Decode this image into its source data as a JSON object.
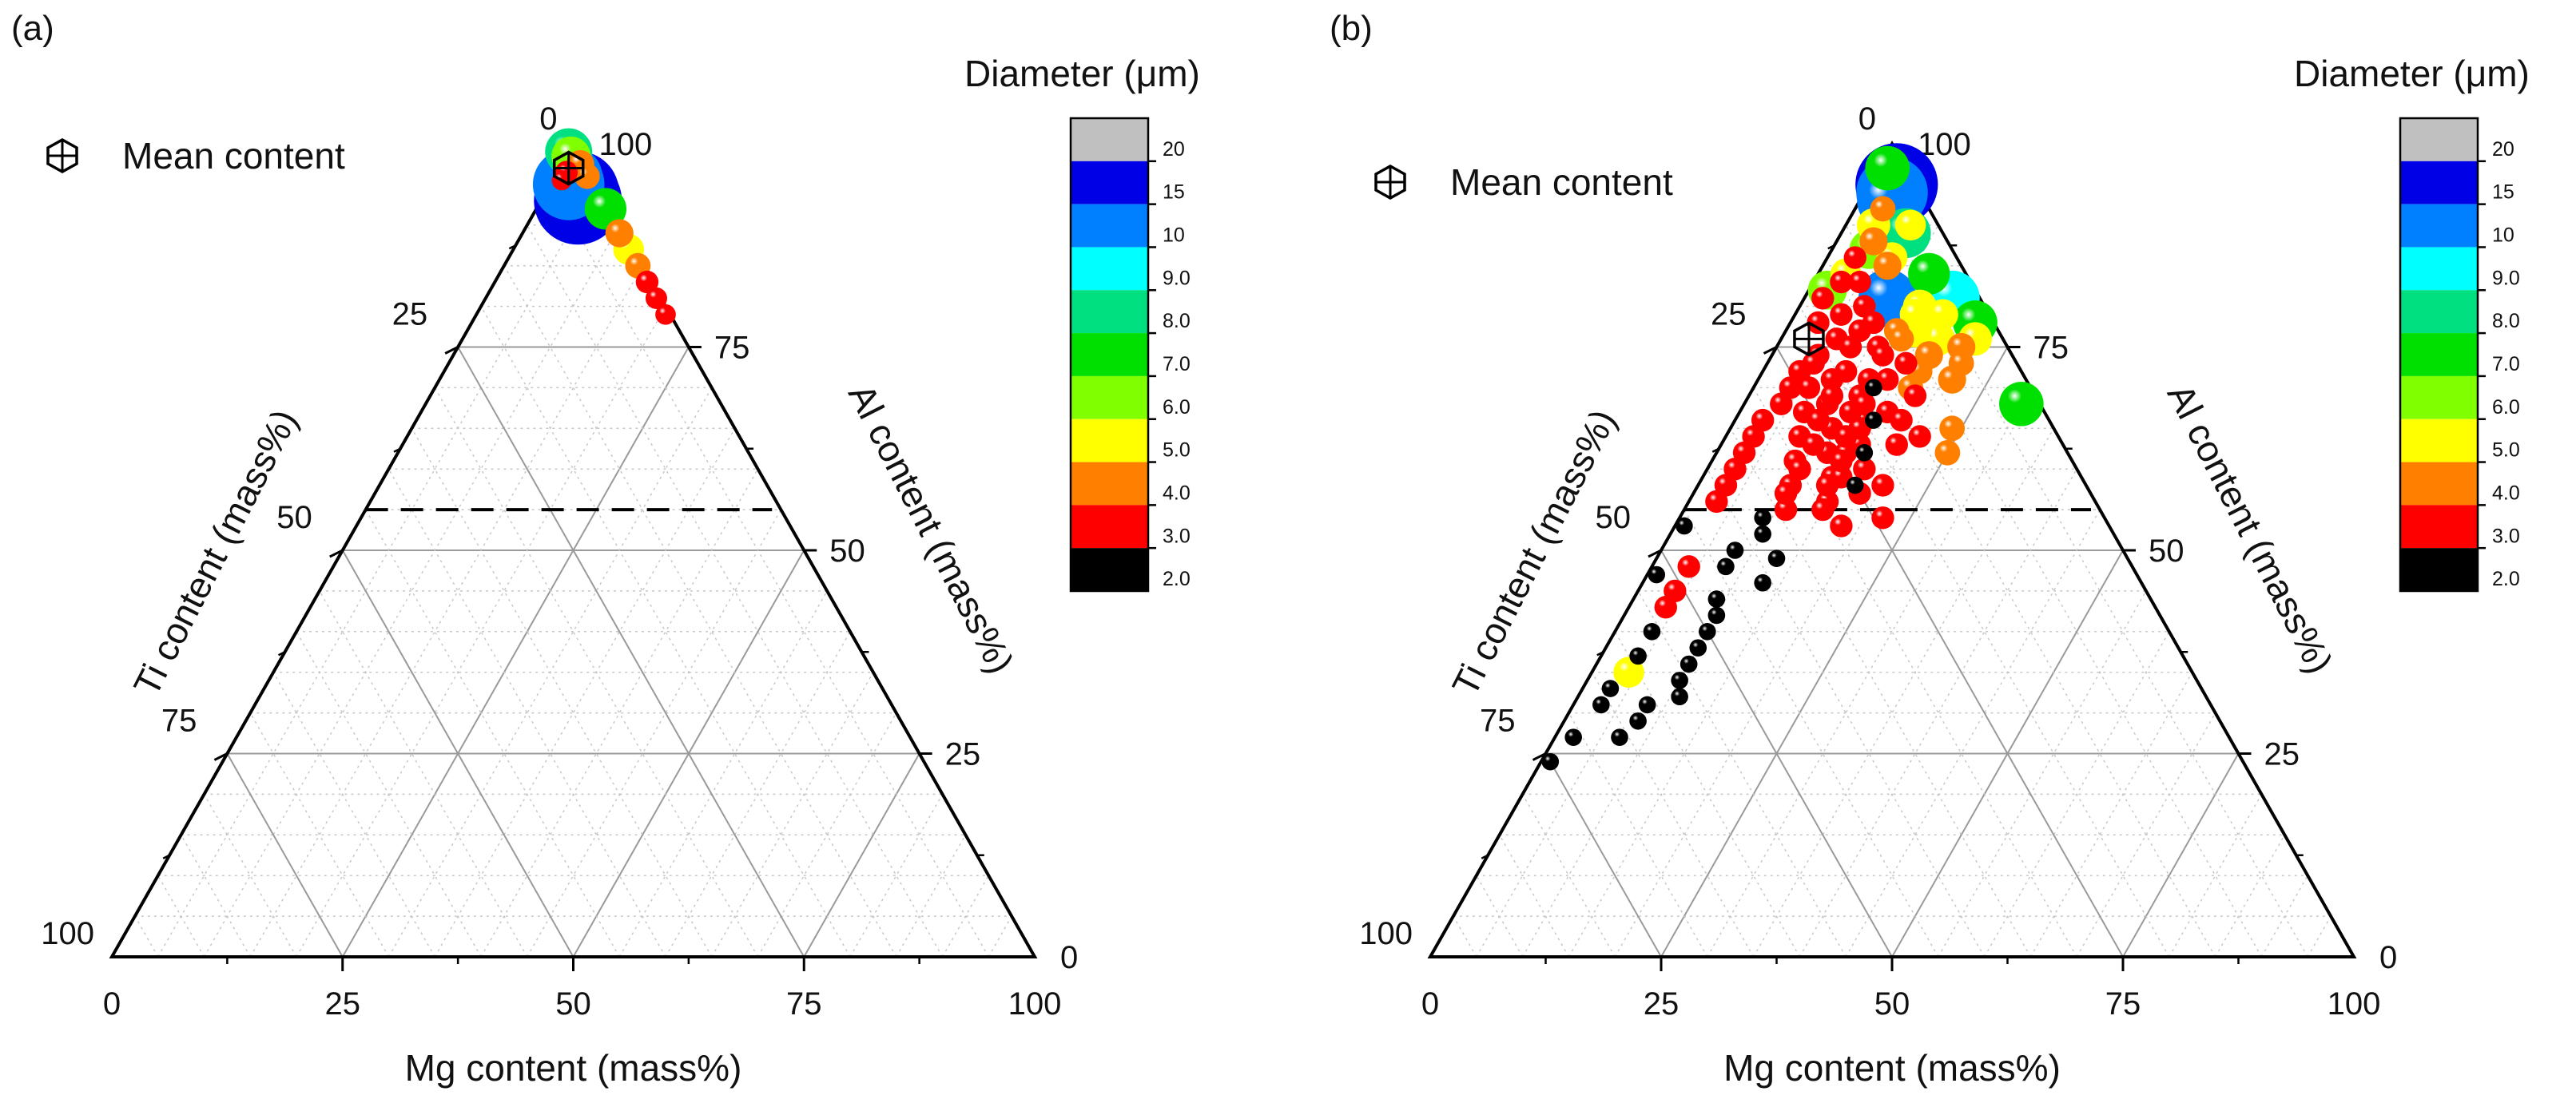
{
  "chart_data": [
    {
      "type": "scatter",
      "subtype": "ternary",
      "panel_label": "(a)",
      "legend_label": "Mean content",
      "colorbar_title": "Diameter (μm)",
      "axes": {
        "bottom_label": "Mg content (mass%)",
        "left_label": "Ti content (mass%)",
        "right_label": "Al content (mass%)",
        "bottom_ticks": [
          "0",
          "25",
          "50",
          "75",
          "100"
        ],
        "left_ticks": [
          "25",
          "50",
          "75",
          "100"
        ],
        "right_ticks": [
          "0",
          "25",
          "50",
          "75",
          "100"
        ],
        "top_label": "0",
        "range": [
          0,
          100
        ]
      },
      "reference_line": {
        "style": "dashed",
        "Al": 55
      },
      "mean_content": {
        "Al": 97,
        "Ti": 2,
        "Mg": 1
      },
      "points": [
        {
          "Al": 99,
          "Ti": 1,
          "Mg": 0,
          "d": 7.5
        },
        {
          "Al": 98.5,
          "Ti": 1,
          "Mg": 0.5,
          "d": 6
        },
        {
          "Al": 96,
          "Ti": 2,
          "Mg": 2,
          "d": 9.5
        },
        {
          "Al": 95,
          "Ti": 3,
          "Mg": 2,
          "d": 12
        },
        {
          "Al": 94,
          "Ti": 2.5,
          "Mg": 3.5,
          "d": 14
        },
        {
          "Al": 93,
          "Ti": 3,
          "Mg": 4,
          "d": 15
        },
        {
          "Al": 95.5,
          "Ti": 3.5,
          "Mg": 1,
          "d": 2.5
        },
        {
          "Al": 96.5,
          "Ti": 2.5,
          "Mg": 1,
          "d": 3
        },
        {
          "Al": 97.5,
          "Ti": 0.5,
          "Mg": 2,
          "d": 4
        },
        {
          "Al": 96,
          "Ti": 0.5,
          "Mg": 3.5,
          "d": 3.5
        },
        {
          "Al": 92,
          "Ti": 0.5,
          "Mg": 7.5,
          "d": 6.5
        },
        {
          "Al": 89,
          "Ti": 0.5,
          "Mg": 10.5,
          "d": 4
        },
        {
          "Al": 87,
          "Ti": 0.5,
          "Mg": 12.5,
          "d": 4.5
        },
        {
          "Al": 85,
          "Ti": 0.5,
          "Mg": 14.5,
          "d": 3.5
        },
        {
          "Al": 83,
          "Ti": 0.5,
          "Mg": 16.5,
          "d": 3
        },
        {
          "Al": 81,
          "Ti": 0.5,
          "Mg": 18.5,
          "d": 2.8
        },
        {
          "Al": 79,
          "Ti": 0.5,
          "Mg": 20.5,
          "d": 2.6
        }
      ]
    },
    {
      "type": "scatter",
      "subtype": "ternary",
      "panel_label": "(b)",
      "legend_label": "Mean content",
      "colorbar_title": "Diameter (μm)",
      "axes": {
        "bottom_label": "Mg content (mass%)",
        "left_label": "Ti content (mass%)",
        "right_label": "Al content (mass%)",
        "bottom_ticks": [
          "0",
          "25",
          "50",
          "75",
          "100"
        ],
        "left_ticks": [
          "25",
          "50",
          "75",
          "100"
        ],
        "right_ticks": [
          "0",
          "25",
          "50",
          "75",
          "100"
        ],
        "top_label": "0",
        "range": [
          0,
          100
        ]
      },
      "reference_line": {
        "style": "dashed",
        "Al": 55
      },
      "mean_content": {
        "Al": 76,
        "Ti": 21,
        "Mg": 3
      },
      "points": [
        {
          "Al": 97,
          "Ti": 2,
          "Mg": 1,
          "d": 7
        },
        {
          "Al": 95,
          "Ti": 2,
          "Mg": 3,
          "d": 14
        },
        {
          "Al": 94,
          "Ti": 3,
          "Mg": 3,
          "d": 12
        },
        {
          "Al": 93,
          "Ti": 4,
          "Mg": 3,
          "d": 10
        },
        {
          "Al": 90,
          "Ti": 7,
          "Mg": 3,
          "d": 5
        },
        {
          "Al": 92,
          "Ti": 5,
          "Mg": 3,
          "d": 3.5
        },
        {
          "Al": 89,
          "Ti": 4,
          "Mg": 7,
          "d": 8
        },
        {
          "Al": 87,
          "Ti": 9,
          "Mg": 4,
          "d": 6
        },
        {
          "Al": 85,
          "Ti": 8,
          "Mg": 7,
          "d": 4
        },
        {
          "Al": 86,
          "Ti": 11,
          "Mg": 3,
          "d": 3
        },
        {
          "Al": 84,
          "Ti": 13,
          "Mg": 3,
          "d": 4.5
        },
        {
          "Al": 84,
          "Ti": 4,
          "Mg": 12,
          "d": 6.5
        },
        {
          "Al": 83,
          "Ti": 12,
          "Mg": 5,
          "d": 3
        },
        {
          "Al": 82,
          "Ti": 16,
          "Mg": 2,
          "d": 6
        },
        {
          "Al": 81,
          "Ti": 10,
          "Mg": 9,
          "d": 9.5
        },
        {
          "Al": 81,
          "Ti": 3,
          "Mg": 16,
          "d": 9
        },
        {
          "Al": 80,
          "Ti": 7,
          "Mg": 13,
          "d": 5
        },
        {
          "Al": 79,
          "Ti": 5,
          "Mg": 16,
          "d": 4.5
        },
        {
          "Al": 78,
          "Ti": 2,
          "Mg": 20,
          "d": 7
        },
        {
          "Al": 77,
          "Ti": 11,
          "Mg": 12,
          "d": 3.5
        },
        {
          "Al": 76,
          "Ti": 7,
          "Mg": 17,
          "d": 5
        },
        {
          "Al": 76,
          "Ti": 3,
          "Mg": 21,
          "d": 5
        },
        {
          "Al": 75,
          "Ti": 14,
          "Mg": 11,
          "d": 3
        },
        {
          "Al": 74,
          "Ti": 9,
          "Mg": 17,
          "d": 4
        },
        {
          "Al": 73,
          "Ti": 6,
          "Mg": 21,
          "d": 3.5
        },
        {
          "Al": 72,
          "Ti": 11,
          "Mg": 17,
          "d": 3.5
        },
        {
          "Al": 71,
          "Ti": 15,
          "Mg": 14,
          "d": 3
        },
        {
          "Al": 71,
          "Ti": 8,
          "Mg": 21,
          "d": 4
        },
        {
          "Al": 69,
          "Ti": 13,
          "Mg": 18,
          "d": 3
        },
        {
          "Al": 68,
          "Ti": 2,
          "Mg": 30,
          "d": 7
        },
        {
          "Al": 67,
          "Ti": 17,
          "Mg": 16,
          "d": 3
        },
        {
          "Al": 65,
          "Ti": 11,
          "Mg": 24,
          "d": 3.5
        },
        {
          "Al": 64,
          "Ti": 15,
          "Mg": 21,
          "d": 3
        },
        {
          "Al": 62,
          "Ti": 13,
          "Mg": 25,
          "d": 3.5
        },
        {
          "Al": 76,
          "Ti": 18,
          "Mg": 6,
          "d": 3
        },
        {
          "Al": 74,
          "Ti": 21,
          "Mg": 5,
          "d": 3
        },
        {
          "Al": 72,
          "Ti": 24,
          "Mg": 4,
          "d": 3
        },
        {
          "Al": 70,
          "Ti": 26,
          "Mg": 4,
          "d": 3
        },
        {
          "Al": 68,
          "Ti": 28,
          "Mg": 4,
          "d": 3
        },
        {
          "Al": 66,
          "Ti": 31,
          "Mg": 3,
          "d": 3
        },
        {
          "Al": 64,
          "Ti": 33,
          "Mg": 3,
          "d": 3
        },
        {
          "Al": 62,
          "Ti": 35,
          "Mg": 3,
          "d": 3
        },
        {
          "Al": 60,
          "Ti": 37,
          "Mg": 3,
          "d": 3
        },
        {
          "Al": 58,
          "Ti": 39,
          "Mg": 3,
          "d": 3
        },
        {
          "Al": 56,
          "Ti": 41,
          "Mg": 3,
          "d": 3
        },
        {
          "Al": 73,
          "Ti": 22,
          "Mg": 5,
          "d": 3
        },
        {
          "Al": 70,
          "Ti": 24,
          "Mg": 6,
          "d": 3
        },
        {
          "Al": 67,
          "Ti": 26,
          "Mg": 7,
          "d": 3
        },
        {
          "Al": 64,
          "Ti": 28,
          "Mg": 8,
          "d": 3
        },
        {
          "Al": 61,
          "Ti": 30,
          "Mg": 9,
          "d": 3
        },
        {
          "Al": 58,
          "Ti": 32,
          "Mg": 10,
          "d": 3
        },
        {
          "Al": 55,
          "Ti": 34,
          "Mg": 11,
          "d": 3
        },
        {
          "Al": 71,
          "Ti": 21,
          "Mg": 8,
          "d": 3
        },
        {
          "Al": 68,
          "Ti": 23,
          "Mg": 9,
          "d": 3
        },
        {
          "Al": 65,
          "Ti": 24,
          "Mg": 11,
          "d": 3
        },
        {
          "Al": 62,
          "Ti": 26,
          "Mg": 12,
          "d": 3
        },
        {
          "Al": 59,
          "Ti": 27,
          "Mg": 14,
          "d": 3
        },
        {
          "Al": 56,
          "Ti": 29,
          "Mg": 15,
          "d": 3
        },
        {
          "Al": 69,
          "Ti": 19,
          "Mg": 12,
          "d": 3
        },
        {
          "Al": 66,
          "Ti": 20,
          "Mg": 14,
          "d": 3
        },
        {
          "Al": 63,
          "Ti": 22,
          "Mg": 15,
          "d": 3
        },
        {
          "Al": 60,
          "Ti": 23,
          "Mg": 17,
          "d": 3
        },
        {
          "Al": 57,
          "Ti": 25,
          "Mg": 18,
          "d": 3
        },
        {
          "Al": 77,
          "Ti": 15,
          "Mg": 8,
          "d": 3
        },
        {
          "Al": 75,
          "Ti": 17,
          "Mg": 8,
          "d": 3
        },
        {
          "Al": 72,
          "Ti": 19,
          "Mg": 9,
          "d": 3
        },
        {
          "Al": 69,
          "Ti": 22,
          "Mg": 9,
          "d": 3
        },
        {
          "Al": 66,
          "Ti": 25,
          "Mg": 9,
          "d": 3
        },
        {
          "Al": 63,
          "Ti": 27,
          "Mg": 10,
          "d": 3
        },
        {
          "Al": 60,
          "Ti": 30,
          "Mg": 10,
          "d": 3
        },
        {
          "Al": 57,
          "Ti": 33,
          "Mg": 10,
          "d": 3
        },
        {
          "Al": 74,
          "Ti": 14,
          "Mg": 12,
          "d": 3
        },
        {
          "Al": 71,
          "Ti": 17,
          "Mg": 12,
          "d": 3
        },
        {
          "Al": 68,
          "Ti": 19,
          "Mg": 13,
          "d": 3
        },
        {
          "Al": 65,
          "Ti": 21,
          "Mg": 14,
          "d": 3
        },
        {
          "Al": 62,
          "Ti": 24,
          "Mg": 14,
          "d": 3
        },
        {
          "Al": 59,
          "Ti": 26,
          "Mg": 15,
          "d": 3
        },
        {
          "Al": 79,
          "Ti": 16,
          "Mg": 5,
          "d": 3
        },
        {
          "Al": 78,
          "Ti": 19,
          "Mg": 3,
          "d": 3
        },
        {
          "Al": 80,
          "Ti": 13,
          "Mg": 7,
          "d": 3
        },
        {
          "Al": 83,
          "Ti": 14,
          "Mg": 3,
          "d": 3
        },
        {
          "Al": 81,
          "Ti": 17,
          "Mg": 2,
          "d": 3
        },
        {
          "Al": 78,
          "Ti": 13,
          "Mg": 9,
          "d": 3
        },
        {
          "Al": 76,
          "Ti": 11,
          "Mg": 13,
          "d": 3.5
        },
        {
          "Al": 73,
          "Ti": 12,
          "Mg": 15,
          "d": 3
        },
        {
          "Al": 67,
          "Ti": 21,
          "Mg": 12,
          "d": 3
        },
        {
          "Al": 64,
          "Ti": 23,
          "Mg": 13,
          "d": 3
        },
        {
          "Al": 61,
          "Ti": 25,
          "Mg": 14,
          "d": 3
        },
        {
          "Al": 58,
          "Ti": 28,
          "Mg": 14,
          "d": 3
        },
        {
          "Al": 55,
          "Ti": 30,
          "Mg": 15,
          "d": 3
        },
        {
          "Al": 53,
          "Ti": 29,
          "Mg": 18,
          "d": 3
        },
        {
          "Al": 70,
          "Ti": 13,
          "Mg": 17,
          "d": 3.5
        },
        {
          "Al": 66,
          "Ti": 16,
          "Mg": 18,
          "d": 3
        },
        {
          "Al": 63,
          "Ti": 18,
          "Mg": 19,
          "d": 3
        },
        {
          "Al": 58,
          "Ti": 22,
          "Mg": 20,
          "d": 3
        },
        {
          "Al": 54,
          "Ti": 24,
          "Mg": 22,
          "d": 3
        },
        {
          "Al": 86,
          "Ti": 7,
          "Mg": 7,
          "d": 4.5
        },
        {
          "Al": 88,
          "Ti": 8,
          "Mg": 4,
          "d": 4
        },
        {
          "Al": 90,
          "Ti": 3,
          "Mg": 7,
          "d": 4.5
        },
        {
          "Al": 79,
          "Ti": 8,
          "Mg": 13,
          "d": 4.5
        },
        {
          "Al": 75,
          "Ti": 5,
          "Mg": 20,
          "d": 4
        },
        {
          "Al": 77,
          "Ti": 9,
          "Mg": 14,
          "d": 5
        },
        {
          "Al": 70,
          "Ti": 17,
          "Mg": 13,
          "d": 2
        },
        {
          "Al": 66,
          "Ti": 19,
          "Mg": 15,
          "d": 2
        },
        {
          "Al": 62,
          "Ti": 22,
          "Mg": 16,
          "d": 2
        },
        {
          "Al": 58,
          "Ti": 25,
          "Mg": 17,
          "d": 2
        },
        {
          "Al": 54,
          "Ti": 37,
          "Mg": 9,
          "d": 2
        },
        {
          "Al": 52,
          "Ti": 38,
          "Mg": 10,
          "d": 2
        },
        {
          "Al": 50,
          "Ti": 42,
          "Mg": 8,
          "d": 2
        },
        {
          "Al": 49,
          "Ti": 38,
          "Mg": 13,
          "d": 2
        },
        {
          "Al": 48,
          "Ti": 44,
          "Mg": 8,
          "d": 2
        },
        {
          "Al": 46,
          "Ti": 41,
          "Mg": 13,
          "d": 2
        },
        {
          "Al": 44,
          "Ti": 47,
          "Mg": 9,
          "d": 2
        },
        {
          "Al": 42,
          "Ti": 48,
          "Mg": 10,
          "d": 2
        },
        {
          "Al": 40,
          "Ti": 50,
          "Mg": 10,
          "d": 2
        },
        {
          "Al": 38,
          "Ti": 52,
          "Mg": 10,
          "d": 2
        },
        {
          "Al": 36,
          "Ti": 54,
          "Mg": 10,
          "d": 2
        },
        {
          "Al": 34,
          "Ti": 56,
          "Mg": 10,
          "d": 2
        },
        {
          "Al": 32,
          "Ti": 57,
          "Mg": 11,
          "d": 2
        },
        {
          "Al": 31,
          "Ti": 61,
          "Mg": 8,
          "d": 2
        },
        {
          "Al": 29,
          "Ti": 63,
          "Mg": 8,
          "d": 2
        },
        {
          "Al": 27,
          "Ti": 66,
          "Mg": 7,
          "d": 2
        },
        {
          "Al": 48,
          "Ti": 48,
          "Mg": 4,
          "d": 3
        },
        {
          "Al": 45,
          "Ti": 51,
          "Mg": 4,
          "d": 3
        },
        {
          "Al": 43,
          "Ti": 53,
          "Mg": 4,
          "d": 3
        },
        {
          "Al": 40,
          "Ti": 56,
          "Mg": 4,
          "d": 2
        },
        {
          "Al": 37,
          "Ti": 59,
          "Mg": 4,
          "d": 2
        },
        {
          "Al": 35,
          "Ti": 61,
          "Mg": 4,
          "d": 4.5
        },
        {
          "Al": 33,
          "Ti": 64,
          "Mg": 3,
          "d": 2
        },
        {
          "Al": 31,
          "Ti": 66,
          "Mg": 3,
          "d": 2
        },
        {
          "Al": 47,
          "Ti": 52,
          "Mg": 1,
          "d": 2
        },
        {
          "Al": 53,
          "Ti": 46,
          "Mg": 1,
          "d": 2
        },
        {
          "Al": 27,
          "Ti": 71,
          "Mg": 2,
          "d": 2
        },
        {
          "Al": 24,
          "Ti": 75,
          "Mg": 1,
          "d": 2
        }
      ]
    }
  ],
  "colorbar": {
    "title": "Diameter (μm)",
    "levels": [
      {
        "label": "20",
        "color": "#c0c0c0"
      },
      {
        "label": "15",
        "color": "#0000e6"
      },
      {
        "label": "10",
        "color": "#0080ff"
      },
      {
        "label": "9.0",
        "color": "#00ffff"
      },
      {
        "label": "8.0",
        "color": "#00e080"
      },
      {
        "label": "7.0",
        "color": "#00e000"
      },
      {
        "label": "6.0",
        "color": "#80ff00"
      },
      {
        "label": "5.0",
        "color": "#ffff00"
      },
      {
        "label": "4.0",
        "color": "#ff8000"
      },
      {
        "label": "3.0",
        "color": "#ff0000"
      },
      {
        "label": "2.0",
        "color": "#000000"
      }
    ]
  }
}
